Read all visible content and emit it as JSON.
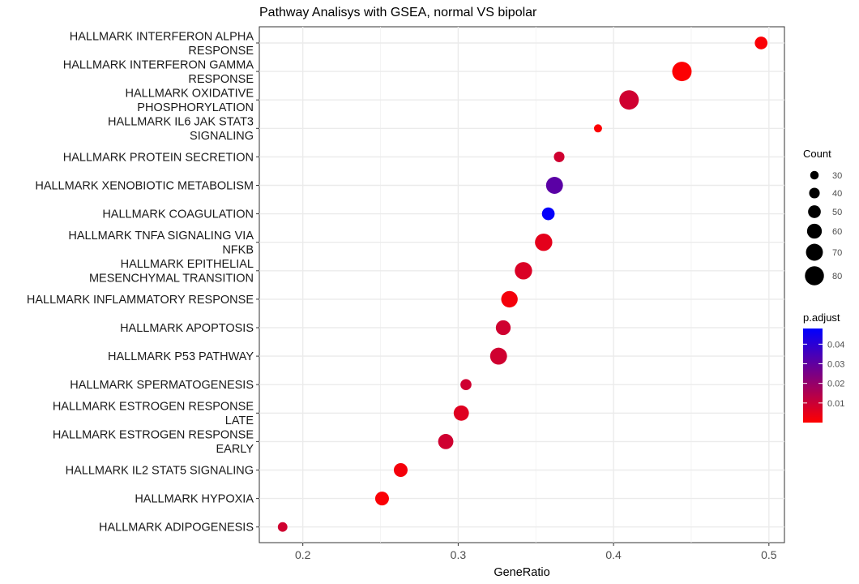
{
  "chart_data": {
    "type": "scatter",
    "title": "Pathway Analisys with GSEA, normal VS bipolar",
    "xlabel": "GeneRatio",
    "ylabel": "",
    "xlim": [
      0.172,
      0.51
    ],
    "xticks": [
      "0.2",
      "0.3",
      "0.4",
      "0.5"
    ],
    "xtick_values": [
      0.2,
      0.3,
      0.4,
      0.5
    ],
    "grid": true,
    "points": [
      {
        "pathway": "HALLMARK INTERFERON ALPHA RESPONSE",
        "label_lines": [
          "HALLMARK INTERFERON ALPHA",
          "RESPONSE"
        ],
        "gene_ratio": 0.495,
        "count": 50,
        "p_adjust": 0.001
      },
      {
        "pathway": "HALLMARK INTERFERON GAMMA RESPONSE",
        "label_lines": [
          "HALLMARK INTERFERON GAMMA",
          "RESPONSE"
        ],
        "gene_ratio": 0.444,
        "count": 82,
        "p_adjust": 0.0005
      },
      {
        "pathway": "HALLMARK OXIDATIVE PHOSPHORYLATION",
        "label_lines": [
          "HALLMARK OXIDATIVE",
          "PHOSPHORYLATION"
        ],
        "gene_ratio": 0.41,
        "count": 82,
        "p_adjust": 0.009
      },
      {
        "pathway": "HALLMARK IL6 JAK STAT3 SIGNALING",
        "label_lines": [
          "HALLMARK IL6 JAK STAT3",
          "SIGNALING"
        ],
        "gene_ratio": 0.39,
        "count": 28,
        "p_adjust": 0.0005
      },
      {
        "pathway": "HALLMARK PROTEIN SECRETION",
        "label_lines": [
          "HALLMARK PROTEIN SECRETION"
        ],
        "gene_ratio": 0.365,
        "count": 40,
        "p_adjust": 0.009
      },
      {
        "pathway": "HALLMARK XENOBIOTIC METABOLISM",
        "label_lines": [
          "HALLMARK XENOBIOTIC METABOLISM"
        ],
        "gene_ratio": 0.362,
        "count": 70,
        "p_adjust": 0.031
      },
      {
        "pathway": "HALLMARK COAGULATION",
        "label_lines": [
          "HALLMARK COAGULATION"
        ],
        "gene_ratio": 0.358,
        "count": 50,
        "p_adjust": 0.047
      },
      {
        "pathway": "HALLMARK TNFA SIGNALING VIA NFKB",
        "label_lines": [
          "HALLMARK TNFA SIGNALING VIA",
          "NFKB"
        ],
        "gene_ratio": 0.355,
        "count": 72,
        "p_adjust": 0.005
      },
      {
        "pathway": "HALLMARK EPITHELIAL MESENCHYMAL TRANSITION",
        "label_lines": [
          "HALLMARK EPITHELIAL",
          "MESENCHYMAL TRANSITION"
        ],
        "gene_ratio": 0.342,
        "count": 72,
        "p_adjust": 0.007
      },
      {
        "pathway": "HALLMARK INFLAMMATORY RESPONSE",
        "label_lines": [
          "HALLMARK INFLAMMATORY RESPONSE"
        ],
        "gene_ratio": 0.333,
        "count": 68,
        "p_adjust": 0.002
      },
      {
        "pathway": "HALLMARK APOPTOSIS",
        "label_lines": [
          "HALLMARK APOPTOSIS"
        ],
        "gene_ratio": 0.329,
        "count": 60,
        "p_adjust": 0.009
      },
      {
        "pathway": "HALLMARK P53 PATHWAY",
        "label_lines": [
          "HALLMARK P53 PATHWAY"
        ],
        "gene_ratio": 0.326,
        "count": 70,
        "p_adjust": 0.009
      },
      {
        "pathway": "HALLMARK SPERMATOGENESIS",
        "label_lines": [
          "HALLMARK SPERMATOGENESIS"
        ],
        "gene_ratio": 0.305,
        "count": 42,
        "p_adjust": 0.009
      },
      {
        "pathway": "HALLMARK ESTROGEN RESPONSE LATE",
        "label_lines": [
          "HALLMARK ESTROGEN RESPONSE",
          "LATE"
        ],
        "gene_ratio": 0.302,
        "count": 62,
        "p_adjust": 0.006
      },
      {
        "pathway": "HALLMARK ESTROGEN RESPONSE EARLY",
        "label_lines": [
          "HALLMARK ESTROGEN RESPONSE",
          "EARLY"
        ],
        "gene_ratio": 0.292,
        "count": 62,
        "p_adjust": 0.009
      },
      {
        "pathway": "HALLMARK IL2 STAT5 SIGNALING",
        "label_lines": [
          "HALLMARK IL2 STAT5 SIGNALING"
        ],
        "gene_ratio": 0.263,
        "count": 55,
        "p_adjust": 0.002
      },
      {
        "pathway": "HALLMARK HYPOXIA",
        "label_lines": [
          "HALLMARK HYPOXIA"
        ],
        "gene_ratio": 0.251,
        "count": 55,
        "p_adjust": 0.001
      },
      {
        "pathway": "HALLMARK ADIPOGENESIS",
        "label_lines": [
          "HALLMARK ADIPOGENESIS"
        ],
        "gene_ratio": 0.187,
        "count": 35,
        "p_adjust": 0.009
      }
    ],
    "legend_count": {
      "title": "Count",
      "entries": [
        30,
        40,
        50,
        60,
        70,
        80
      ],
      "labels": [
        "30",
        "40",
        "50",
        "60",
        "70",
        "80"
      ]
    },
    "legend_padjust": {
      "title": "p.adjust",
      "range": [
        0.0,
        0.048
      ],
      "ticks": [
        0.04,
        0.03,
        0.02,
        0.01
      ],
      "labels": [
        "0.04",
        "0.03",
        "0.02",
        "0.01"
      ],
      "color_low": "#ff0000",
      "color_high": "#0000ff"
    },
    "legend_placement": "right"
  }
}
